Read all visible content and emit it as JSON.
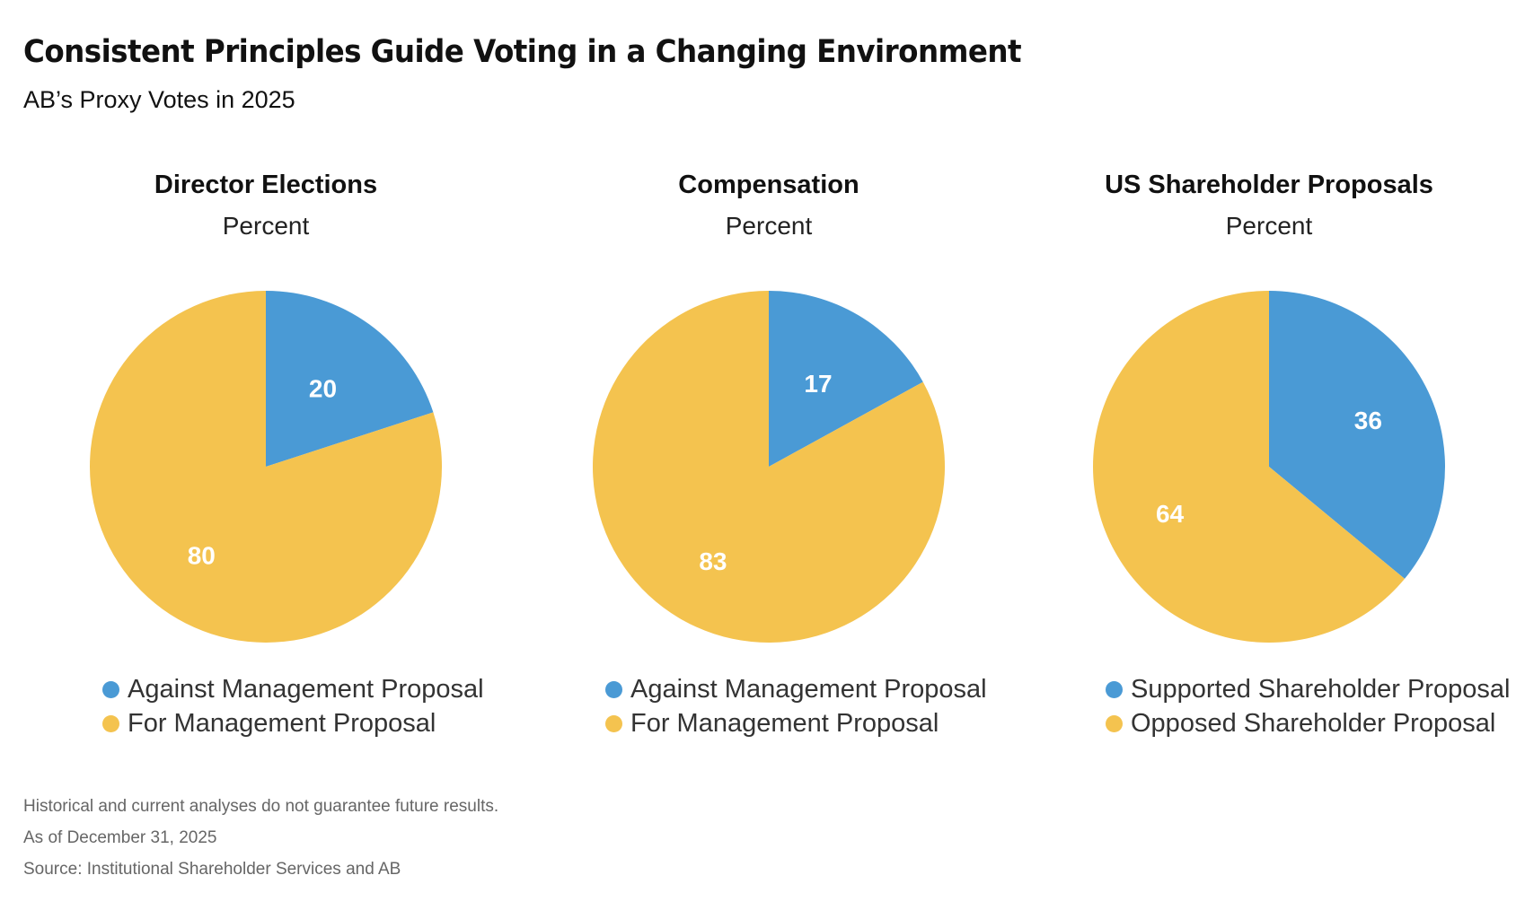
{
  "header": {
    "title": "Consistent Principles Guide Voting in a Changing Environment",
    "subtitle": "AB’s Proxy Votes in 2025"
  },
  "colors": {
    "blue": "#4a9ad5",
    "yellow": "#f4c34f"
  },
  "chart_data": [
    {
      "type": "pie",
      "title": "Director Elections",
      "unit": "Percent",
      "slices": [
        {
          "label": "Against Management Proposal",
          "value": 20,
          "color": "#4a9ad5"
        },
        {
          "label": "For Management Proposal",
          "value": 80,
          "color": "#f4c34f"
        }
      ]
    },
    {
      "type": "pie",
      "title": "Compensation",
      "unit": "Percent",
      "slices": [
        {
          "label": "Against Management Proposal",
          "value": 17,
          "color": "#4a9ad5"
        },
        {
          "label": "For Management Proposal",
          "value": 83,
          "color": "#f4c34f"
        }
      ]
    },
    {
      "type": "pie",
      "title": "US Shareholder Proposals",
      "unit": "Percent",
      "slices": [
        {
          "label": "Supported Shareholder Proposal",
          "value": 36,
          "color": "#4a9ad5"
        },
        {
          "label": "Opposed Shareholder Proposal",
          "value": 64,
          "color": "#f4c34f"
        }
      ]
    }
  ],
  "footnotes": [
    "Historical and current analyses do not guarantee future results.",
    "As of December 31, 2025",
    "Source: Institutional Shareholder Services and AB"
  ]
}
